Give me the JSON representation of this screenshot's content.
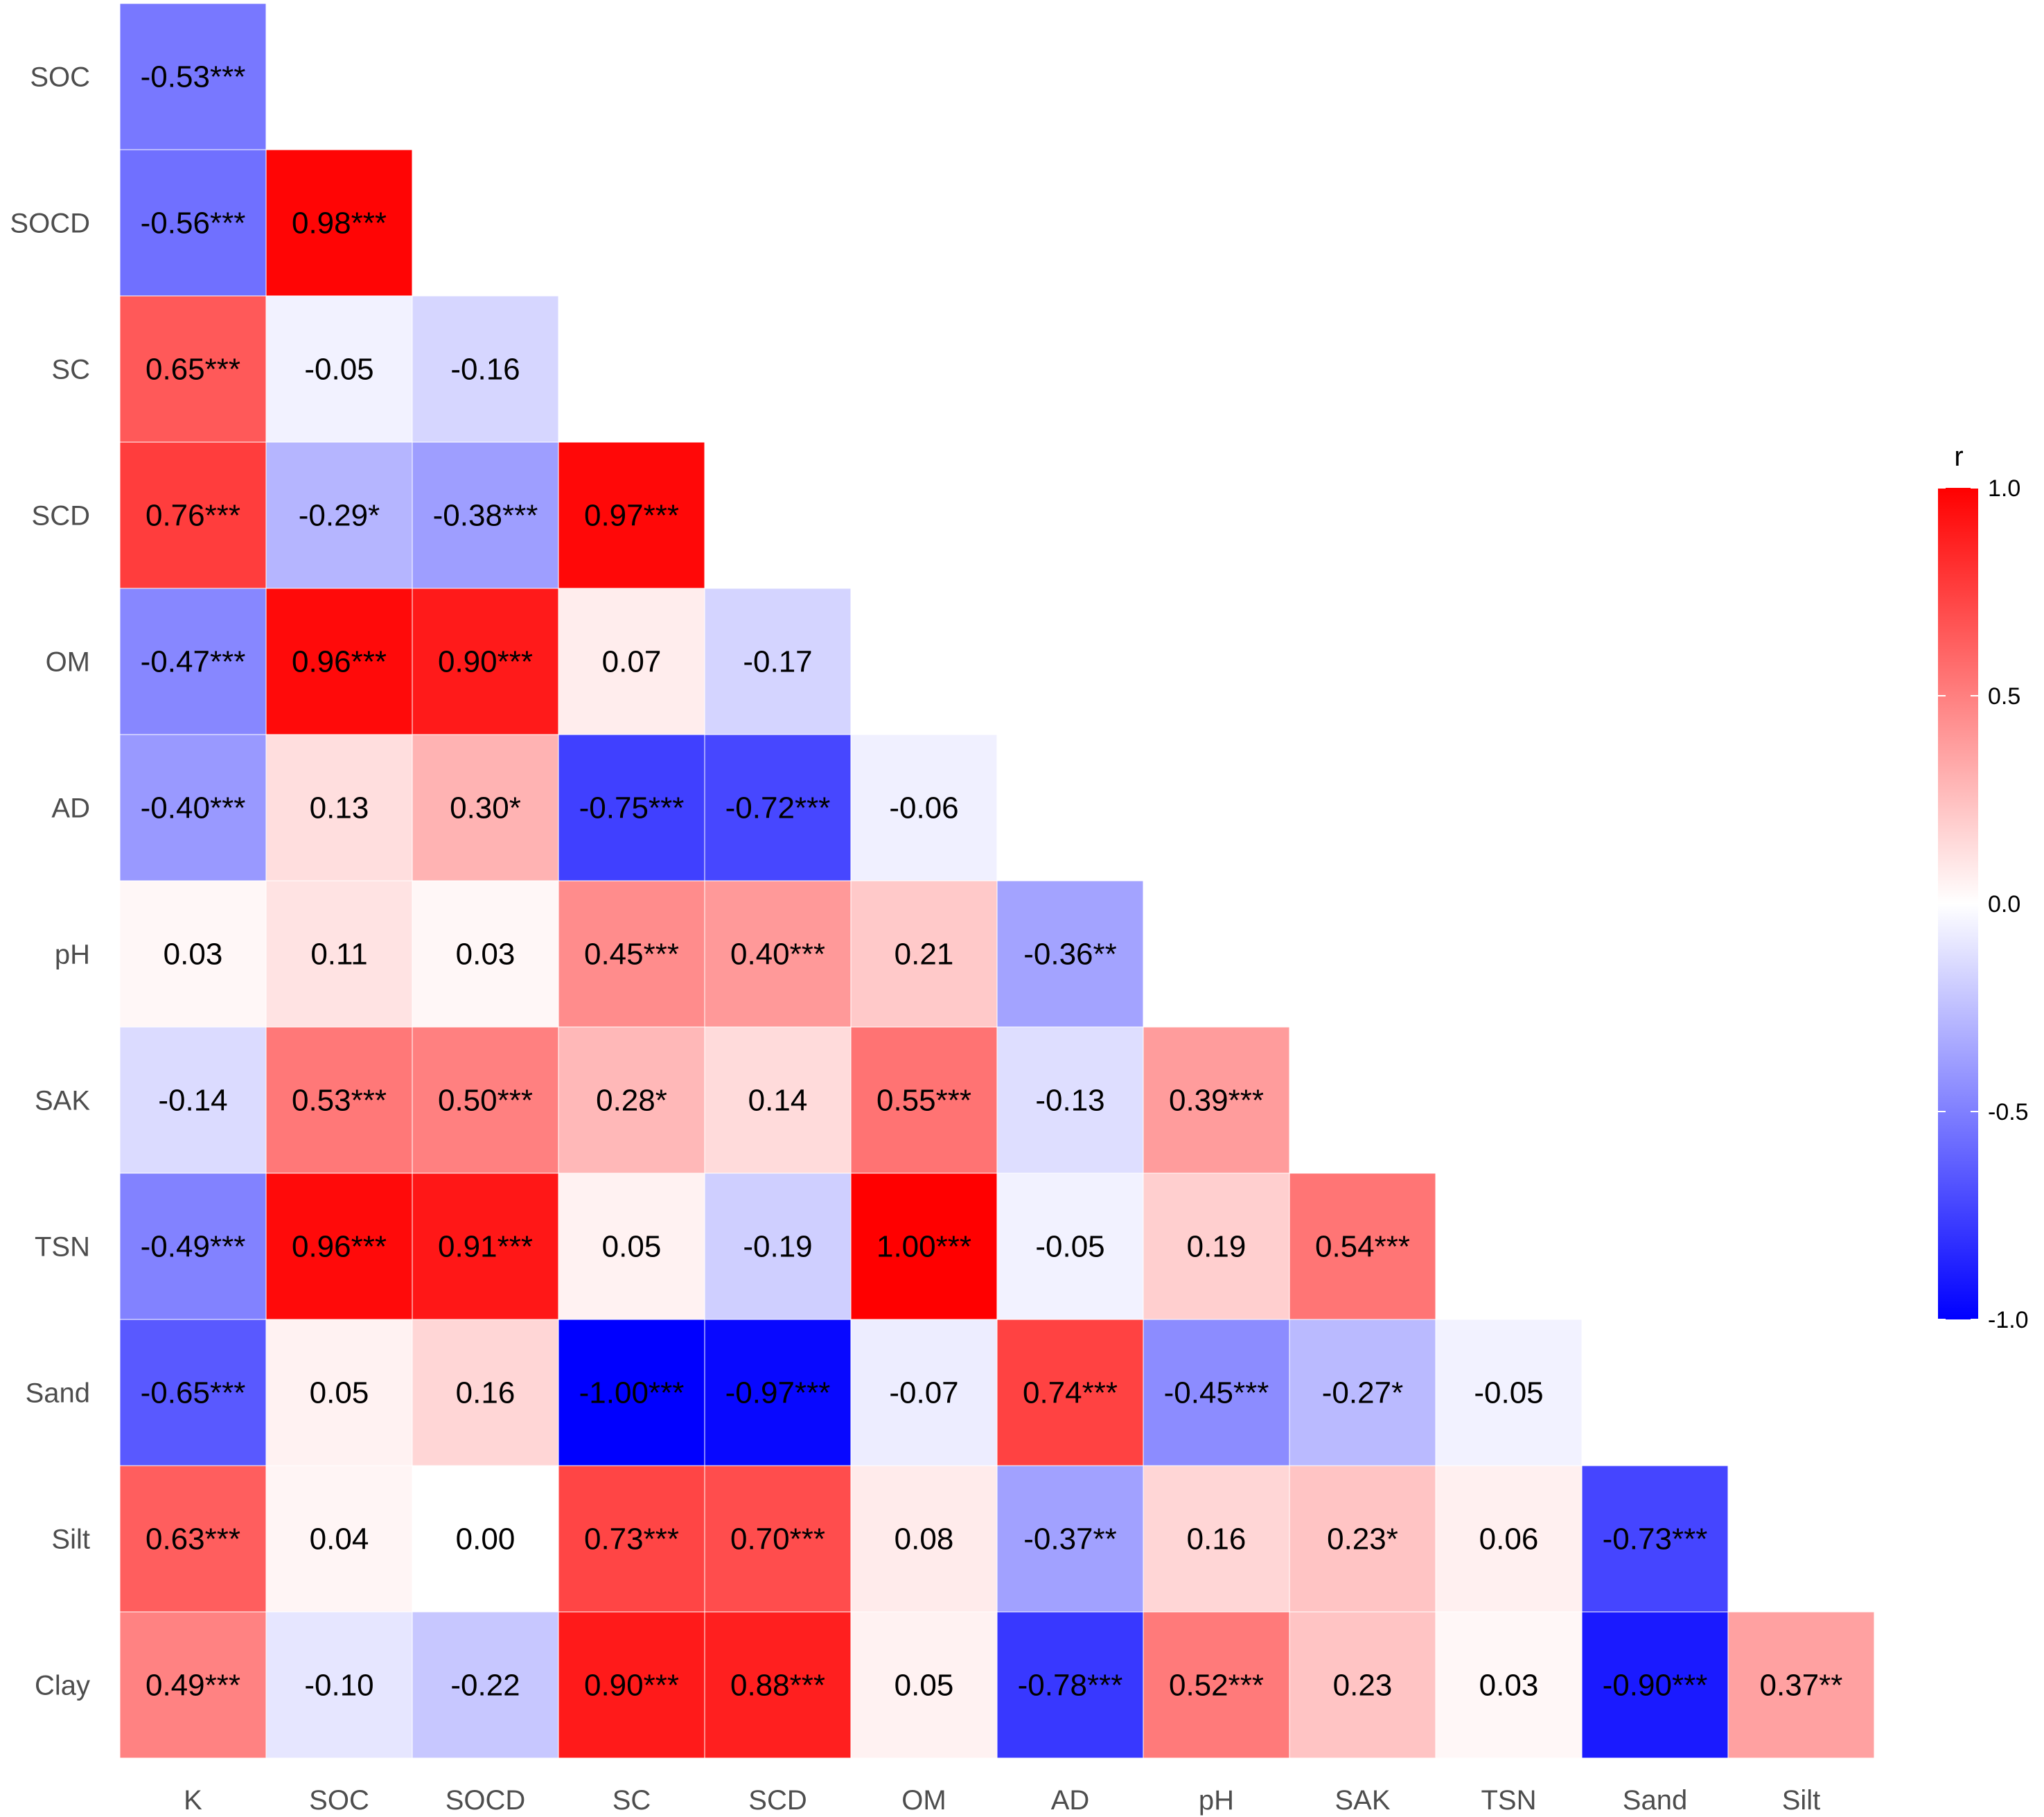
{
  "chart_data": {
    "type": "heatmap",
    "title": "",
    "xlabel": "",
    "ylabel": "",
    "x_categories": [
      "K",
      "SOC",
      "SOCD",
      "SC",
      "SCD",
      "OM",
      "AD",
      "pH",
      "SAK",
      "TSN",
      "Sand",
      "Silt"
    ],
    "y_categories": [
      "SOC",
      "SOCD",
      "SC",
      "SCD",
      "OM",
      "AD",
      "pH",
      "SAK",
      "TSN",
      "Sand",
      "Silt",
      "Clay"
    ],
    "values": [
      [
        -0.53
      ],
      [
        -0.56,
        0.98
      ],
      [
        0.65,
        -0.05,
        -0.16
      ],
      [
        0.76,
        -0.29,
        -0.38,
        0.97
      ],
      [
        -0.47,
        0.96,
        0.9,
        0.07,
        -0.17
      ],
      [
        -0.4,
        0.13,
        0.3,
        -0.75,
        -0.72,
        -0.06
      ],
      [
        0.03,
        0.11,
        0.03,
        0.45,
        0.4,
        0.21,
        -0.36
      ],
      [
        -0.14,
        0.53,
        0.5,
        0.28,
        0.14,
        0.55,
        -0.13,
        0.39
      ],
      [
        -0.49,
        0.96,
        0.91,
        0.05,
        -0.19,
        1.0,
        -0.05,
        0.19,
        0.54
      ],
      [
        -0.65,
        0.05,
        0.16,
        -1.0,
        -0.97,
        -0.07,
        0.74,
        -0.45,
        -0.27,
        -0.05
      ],
      [
        0.63,
        0.04,
        0.0,
        0.73,
        0.7,
        0.08,
        -0.37,
        0.16,
        0.23,
        0.06,
        -0.73
      ],
      [
        0.49,
        -0.1,
        -0.22,
        0.9,
        0.88,
        0.05,
        -0.78,
        0.52,
        0.23,
        0.03,
        -0.9,
        0.37
      ]
    ],
    "labels": [
      [
        "-0.53***"
      ],
      [
        "-0.56***",
        "0.98***"
      ],
      [
        "0.65***",
        "-0.05",
        "-0.16"
      ],
      [
        "0.76***",
        "-0.29*",
        "-0.38***",
        "0.97***"
      ],
      [
        "-0.47***",
        "0.96***",
        "0.90***",
        "0.07",
        "-0.17"
      ],
      [
        "-0.40***",
        "0.13",
        "0.30*",
        "-0.75***",
        "-0.72***",
        "-0.06"
      ],
      [
        "0.03",
        "0.11",
        "0.03",
        "0.45***",
        "0.40***",
        "0.21",
        "-0.36**"
      ],
      [
        "-0.14",
        "0.53***",
        "0.50***",
        "0.28*",
        "0.14",
        "0.55***",
        "-0.13",
        "0.39***"
      ],
      [
        "-0.49***",
        "0.96***",
        "0.91***",
        "0.05",
        "-0.19",
        "1.00***",
        "-0.05",
        "0.19",
        "0.54***"
      ],
      [
        "-0.65***",
        "0.05",
        "0.16",
        "-1.00***",
        "-0.97***",
        "-0.07",
        "0.74***",
        "-0.45***",
        "-0.27*",
        "-0.05"
      ],
      [
        "0.63***",
        "0.04",
        "0.00",
        "0.73***",
        "0.70***",
        "0.08",
        "-0.37**",
        "0.16",
        "0.23*",
        "0.06",
        "-0.73***"
      ],
      [
        "0.49***",
        "-0.10",
        "-0.22",
        "0.90***",
        "0.88***",
        "0.05",
        "-0.78***",
        "0.52***",
        "0.23",
        "0.03",
        "-0.90***",
        "0.37**"
      ]
    ],
    "color_scale": {
      "low": "#0000ff",
      "mid": "#ffffff",
      "high": "#ff0000",
      "range": [
        -1.0,
        1.0
      ]
    },
    "legend": {
      "title": "r",
      "placement": "right",
      "ticks": [
        1.0,
        0.5,
        0.0,
        -0.5,
        -1.0
      ],
      "tick_labels": [
        "1.0",
        "0.5",
        "0.0",
        "-0.5",
        "-1.0"
      ]
    },
    "grid": false
  }
}
